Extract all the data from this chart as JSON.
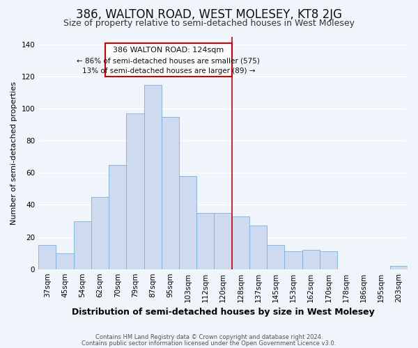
{
  "title": "386, WALTON ROAD, WEST MOLESEY, KT8 2JG",
  "subtitle": "Size of property relative to semi-detached houses in West Molesey",
  "xlabel": "Distribution of semi-detached houses by size in West Molesey",
  "ylabel": "Number of semi-detached properties",
  "categories": [
    "37sqm",
    "45sqm",
    "54sqm",
    "62sqm",
    "70sqm",
    "79sqm",
    "87sqm",
    "95sqm",
    "103sqm",
    "112sqm",
    "120sqm",
    "128sqm",
    "137sqm",
    "145sqm",
    "153sqm",
    "162sqm",
    "170sqm",
    "178sqm",
    "186sqm",
    "195sqm",
    "203sqm"
  ],
  "values": [
    15,
    10,
    30,
    45,
    65,
    97,
    115,
    95,
    58,
    35,
    35,
    33,
    27,
    15,
    11,
    12,
    11,
    0,
    0,
    0,
    2
  ],
  "bar_color": "#cddaf0",
  "bar_edge_color": "#7aaee0",
  "background_color": "#f0f4fb",
  "grid_color": "#ffffff",
  "annotation_title": "386 WALTON ROAD: 124sqm",
  "annotation_line1": "← 86% of semi-detached houses are smaller (575)",
  "annotation_line2": "13% of semi-detached houses are larger (89) →",
  "annotation_box_color": "#ffffff",
  "annotation_border_color": "#cc0000",
  "property_vline_color": "#cc0000",
  "footer_line1": "Contains HM Land Registry data © Crown copyright and database right 2024.",
  "footer_line2": "Contains public sector information licensed under the Open Government Licence v3.0.",
  "ylim": [
    0,
    145
  ],
  "title_fontsize": 12,
  "subtitle_fontsize": 9,
  "xlabel_fontsize": 9,
  "ylabel_fontsize": 8,
  "tick_fontsize": 7.5,
  "footer_fontsize": 6,
  "vline_index": 10.5
}
